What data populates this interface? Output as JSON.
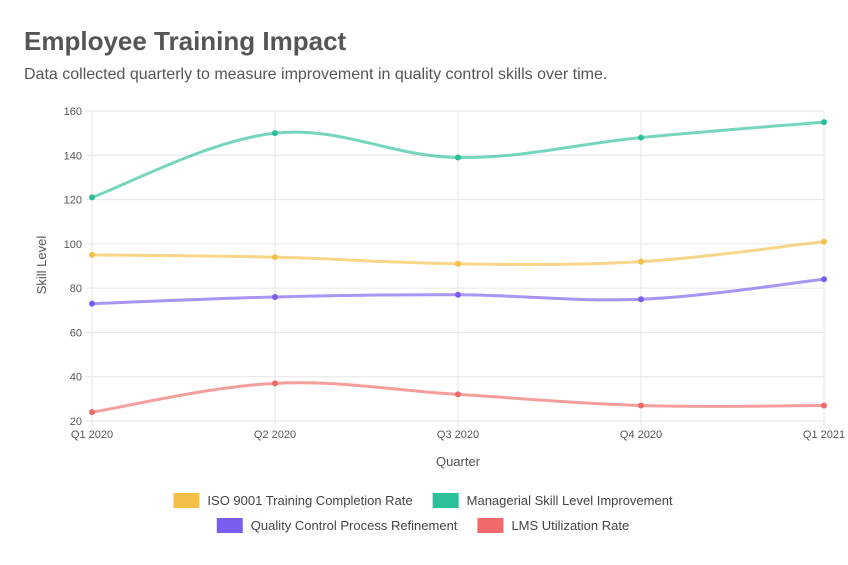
{
  "header": {
    "title": "Employee Training Impact",
    "subtitle": "Data collected quarterly to measure improvement in quality control skills over time."
  },
  "chart_data": {
    "type": "line",
    "x": [
      "Q1 2020",
      "Q2 2020",
      "Q3 2020",
      "Q4 2020",
      "Q1 2021"
    ],
    "xlabel": "Quarter",
    "ylabel": "Skill Level",
    "ylim": [
      20,
      160
    ],
    "yticks": [
      20,
      40,
      60,
      80,
      100,
      120,
      140,
      160
    ],
    "grid": true,
    "legend_position": "bottom",
    "series": [
      {
        "name": "ISO 9001 Training Completion Rate",
        "color": "#f5c04a",
        "values": [
          95,
          94,
          91,
          92,
          101
        ]
      },
      {
        "name": "Managerial Skill Level Improvement",
        "color": "#2bbf9a",
        "values": [
          121,
          150,
          139,
          148,
          155
        ]
      },
      {
        "name": "Quality Control Process Refinement",
        "color": "#7a5cf0",
        "values": [
          73,
          76,
          77,
          75,
          84
        ]
      },
      {
        "name": "LMS Utilization Rate",
        "color": "#f06a6a",
        "values": [
          24,
          37,
          32,
          27,
          27
        ]
      }
    ]
  }
}
